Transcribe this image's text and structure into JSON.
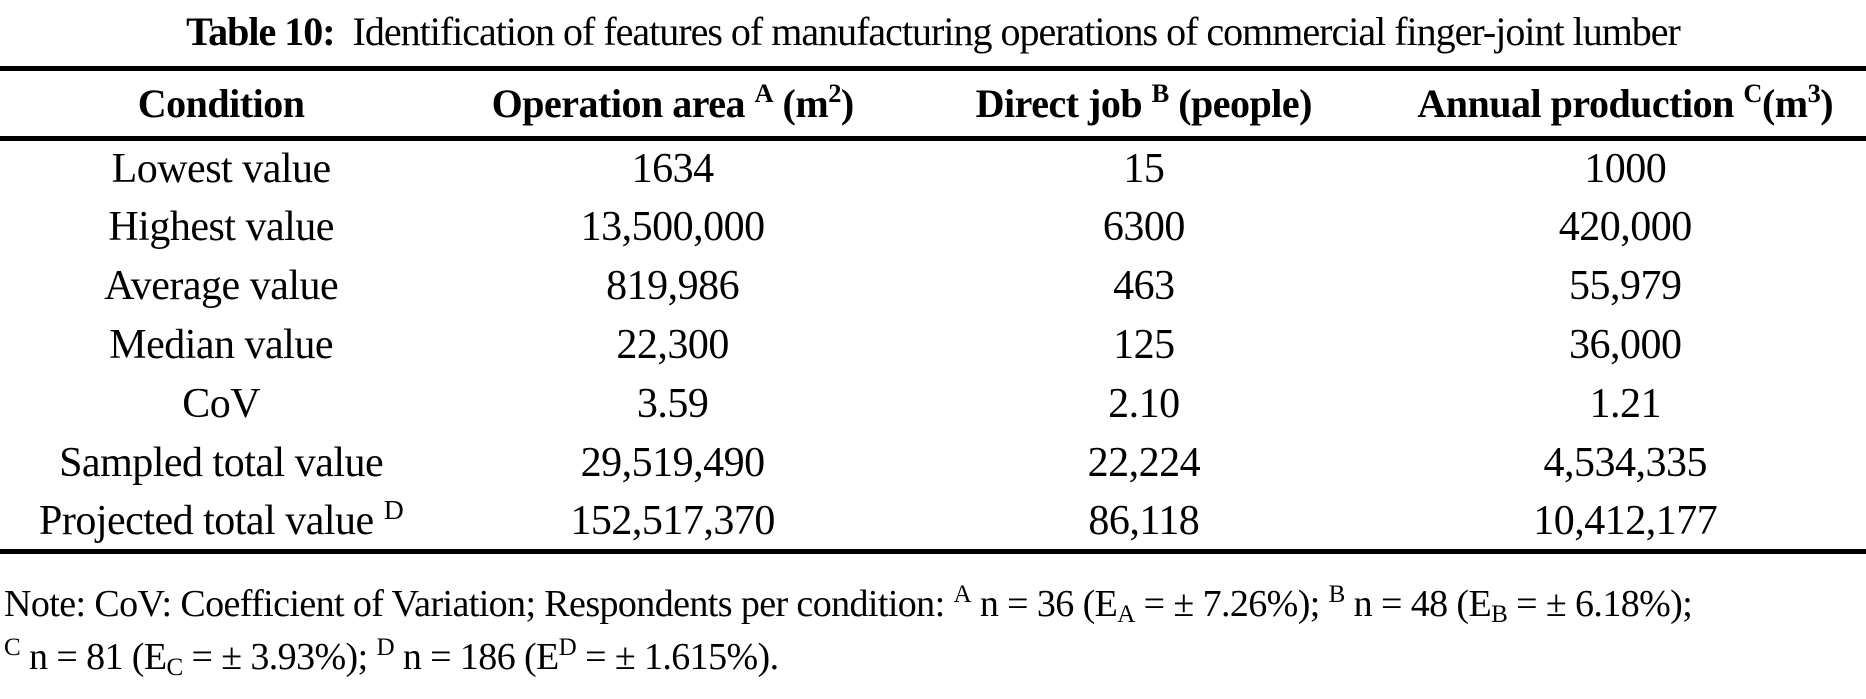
{
  "colors": {
    "text": "#000000",
    "background": "#ffffff",
    "rule": "#000000"
  },
  "caption": {
    "segments": [
      {
        "t": "Table 10:",
        "s": "b"
      },
      {
        "t": "  Identification of features of manufacturing operations of commercial finger-joint lumber",
        "s": ""
      }
    ]
  },
  "table": {
    "headers": [
      {
        "name": "condition",
        "segments": [
          {
            "t": "Condition",
            "s": "b"
          }
        ]
      },
      {
        "name": "operation-area",
        "segments": [
          {
            "t": "Operation area ",
            "s": "b"
          },
          {
            "t": "A",
            "s": "bsup"
          },
          {
            "t": " (m",
            "s": "b"
          },
          {
            "t": "2",
            "s": "bsup"
          },
          {
            "t": ")",
            "s": "b"
          }
        ]
      },
      {
        "name": "direct-job",
        "segments": [
          {
            "t": "Direct job ",
            "s": "b"
          },
          {
            "t": "B",
            "s": "bsup"
          },
          {
            "t": " (people)",
            "s": "b"
          }
        ]
      },
      {
        "name": "annual-production",
        "segments": [
          {
            "t": "Annual production ",
            "s": "b"
          },
          {
            "t": "C",
            "s": "bsup"
          },
          {
            "t": "(m",
            "s": "b"
          },
          {
            "t": "3",
            "s": "bsup"
          },
          {
            "t": ")",
            "s": "b"
          }
        ]
      }
    ],
    "rows": [
      {
        "label": [
          {
            "t": "Lowest value",
            "s": ""
          }
        ],
        "values": [
          "1634",
          "15",
          "1000"
        ]
      },
      {
        "label": [
          {
            "t": "Highest value",
            "s": ""
          }
        ],
        "values": [
          "13,500,000",
          "6300",
          "420,000"
        ]
      },
      {
        "label": [
          {
            "t": "Average value",
            "s": ""
          }
        ],
        "values": [
          "819,986",
          "463",
          "55,979"
        ]
      },
      {
        "label": [
          {
            "t": "Median value",
            "s": ""
          }
        ],
        "values": [
          "22,300",
          "125",
          "36,000"
        ]
      },
      {
        "label": [
          {
            "t": "CoV",
            "s": ""
          }
        ],
        "values": [
          "3.59",
          "2.10",
          "1.21"
        ]
      },
      {
        "label": [
          {
            "t": "Sampled total value",
            "s": ""
          }
        ],
        "values": [
          "29,519,490",
          "22,224",
          "4,534,335"
        ]
      },
      {
        "label": [
          {
            "t": "Projected total value ",
            "s": ""
          },
          {
            "t": "D",
            "s": "sup"
          }
        ],
        "values": [
          "152,517,370",
          "86,118",
          "10,412,177"
        ]
      }
    ]
  },
  "note": {
    "lines": [
      {
        "segments": [
          {
            "t": "Note: CoV: Coefficient of Variation; Respondents per condition: ",
            "s": ""
          },
          {
            "t": "A",
            "s": "sup"
          },
          {
            "t": " n = 36 (E",
            "s": ""
          },
          {
            "t": "A",
            "s": "sub"
          },
          {
            "t": " = ± 7.26%); ",
            "s": ""
          },
          {
            "t": "B",
            "s": "sup"
          },
          {
            "t": " n = 48 (E",
            "s": ""
          },
          {
            "t": "B",
            "s": "sub"
          },
          {
            "t": " = ± 6.18%);",
            "s": ""
          }
        ]
      },
      {
        "segments": [
          {
            "t": "C",
            "s": "sup"
          },
          {
            "t": " n = 81 (E",
            "s": ""
          },
          {
            "t": "C",
            "s": "sub"
          },
          {
            "t": " = ± 3.93%); ",
            "s": ""
          },
          {
            "t": "D",
            "s": "sup"
          },
          {
            "t": " n = 186 (E",
            "s": ""
          },
          {
            "t": "D",
            "s": "sup"
          },
          {
            "t": " = ± 1.615%).",
            "s": ""
          }
        ]
      }
    ]
  }
}
